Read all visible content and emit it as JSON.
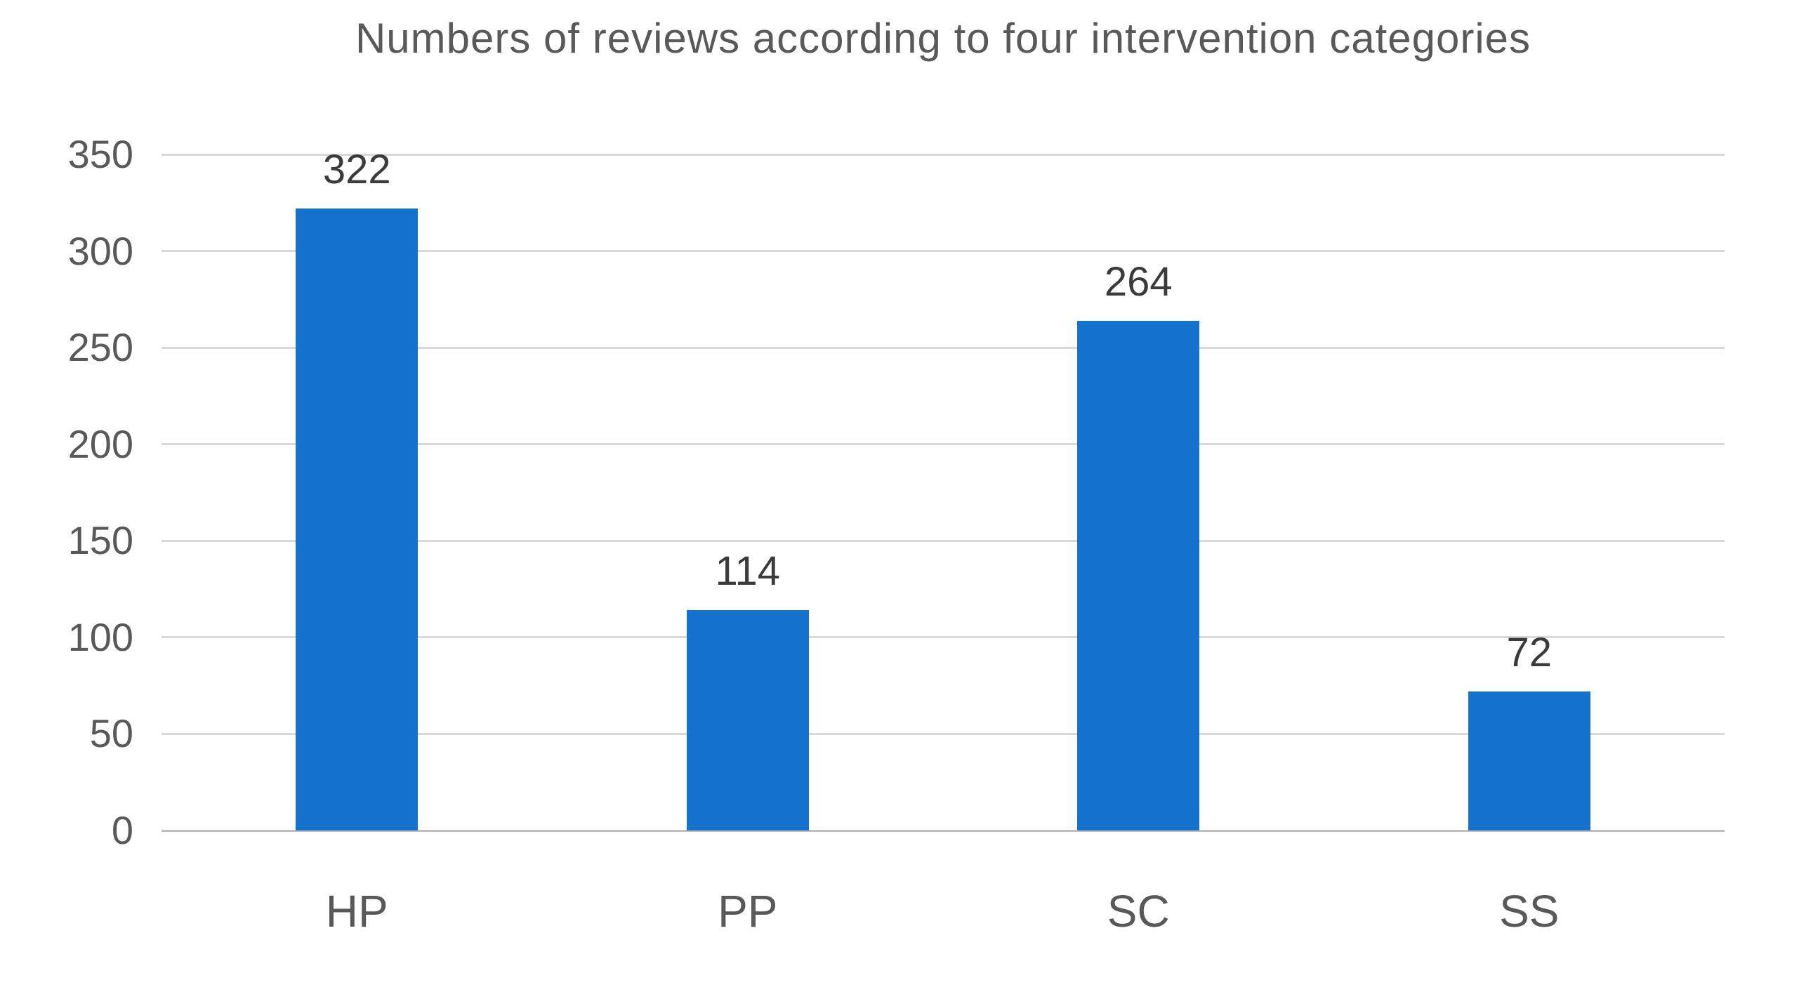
{
  "chart_data": {
    "type": "bar",
    "title": "Numbers of reviews according to four intervention categories",
    "categories": [
      "HP",
      "PP",
      "SC",
      "SS"
    ],
    "values": [
      322,
      114,
      264,
      72
    ],
    "xlabel": "",
    "ylabel": "",
    "ylim": [
      0,
      350
    ],
    "yticks": [
      0,
      50,
      100,
      150,
      200,
      250,
      300,
      350
    ],
    "grid": true,
    "legend": "none",
    "data_labels_shown": true
  },
  "colors": {
    "bar": "#1673CD",
    "gridline": "#D9D9D9",
    "axis_line": "#C0C0C0",
    "title_text": "#595959",
    "tick_text": "#595959",
    "value_label_text": "#3B3B3B",
    "background": "#FFFFFF"
  }
}
